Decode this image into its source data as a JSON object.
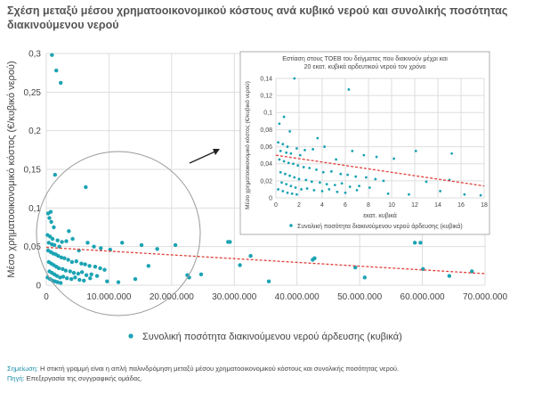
{
  "title": "Σχέση μεταξύ μέσου χρηματοοικονομικού κόστους ανά κυβικό νερού και συνολικής ποσότητας διακινούμενου νερού",
  "footnotes": {
    "note_label": "Σημείωση:",
    "note_text": " Η στικτή γραμμή είναι η απλή παλινδρόμηση μεταξύ μέσου χρηματοοικονομικού κόστους και συνολικής ποσότητας νερού.",
    "source_label": "Πηγή:",
    "source_text": " Επεξεργασία της συγγραφικής ομάδας."
  },
  "colors": {
    "point": "#1ba3b3",
    "regression": "#e0403a",
    "grid": "#dddddd",
    "circle": "#999999"
  },
  "chart_data": [
    {
      "type": "scatter",
      "title": "",
      "ylabel": "Μέσο χρηματοοικονομικό κόστος (€/κυβικό νερού)",
      "xlabel": "",
      "legend": "Συνολική ποσότητα διακινούμενου νερού άρδευσης (κυβικά)",
      "legend_position": "bottom",
      "xlim": [
        0,
        70000000
      ],
      "ylim": [
        0,
        0.3
      ],
      "x_ticks": [
        0,
        10000000,
        20000000,
        30000000,
        40000000,
        50000000,
        60000000,
        70000000
      ],
      "x_tick_labels": [
        "0",
        "10.000.000",
        "20.000.000",
        "30.000.000",
        "40.000.000",
        "50.000.000",
        "60.000.000",
        "70.000.000"
      ],
      "y_ticks": [
        0,
        0.05,
        0.1,
        0.15,
        0.2,
        0.25,
        0.3
      ],
      "y_tick_labels": [
        "0",
        "0,05",
        "0,1",
        "0,15",
        "0,2",
        "0,25",
        "0,3"
      ],
      "grid": true,
      "points": [
        [
          900000,
          0.298
        ],
        [
          1600000,
          0.278
        ],
        [
          2300000,
          0.262
        ],
        [
          1400000,
          0.143
        ],
        [
          6300000,
          0.127
        ],
        [
          700000,
          0.095
        ],
        [
          300000,
          0.093
        ],
        [
          500000,
          0.087
        ],
        [
          800000,
          0.082
        ],
        [
          1200000,
          0.075
        ],
        [
          3600000,
          0.07
        ],
        [
          200000,
          0.065
        ],
        [
          600000,
          0.063
        ],
        [
          1000000,
          0.06
        ],
        [
          1800000,
          0.058
        ],
        [
          2500000,
          0.056
        ],
        [
          400000,
          0.055
        ],
        [
          900000,
          0.053
        ],
        [
          1300000,
          0.052
        ],
        [
          2100000,
          0.05
        ],
        [
          3200000,
          0.057
        ],
        [
          4200000,
          0.06
        ],
        [
          5200000,
          0.045
        ],
        [
          6600000,
          0.055
        ],
        [
          7600000,
          0.05
        ],
        [
          8700000,
          0.048
        ],
        [
          10200000,
          0.046
        ],
        [
          12100000,
          0.055
        ],
        [
          15200000,
          0.052
        ],
        [
          16300000,
          0.025
        ],
        [
          300000,
          0.045
        ],
        [
          700000,
          0.043
        ],
        [
          1100000,
          0.041
        ],
        [
          1500000,
          0.04
        ],
        [
          1900000,
          0.038
        ],
        [
          2400000,
          0.036
        ],
        [
          2900000,
          0.035
        ],
        [
          3500000,
          0.033
        ],
        [
          4100000,
          0.03
        ],
        [
          4800000,
          0.031
        ],
        [
          5600000,
          0.028
        ],
        [
          6200000,
          0.027
        ],
        [
          6900000,
          0.025
        ],
        [
          7800000,
          0.024
        ],
        [
          8600000,
          0.022
        ],
        [
          9300000,
          0.02
        ],
        [
          400000,
          0.03
        ],
        [
          800000,
          0.028
        ],
        [
          1200000,
          0.026
        ],
        [
          1600000,
          0.024
        ],
        [
          2000000,
          0.022
        ],
        [
          2600000,
          0.021
        ],
        [
          3100000,
          0.019
        ],
        [
          3800000,
          0.018
        ],
        [
          4400000,
          0.016
        ],
        [
          5100000,
          0.015
        ],
        [
          5700000,
          0.017
        ],
        [
          6400000,
          0.013
        ],
        [
          7200000,
          0.014
        ],
        [
          8100000,
          0.012
        ],
        [
          500000,
          0.018
        ],
        [
          900000,
          0.016
        ],
        [
          1300000,
          0.014
        ],
        [
          1700000,
          0.012
        ],
        [
          2200000,
          0.01
        ],
        [
          2700000,
          0.011
        ],
        [
          3300000,
          0.009
        ],
        [
          4000000,
          0.008
        ],
        [
          4600000,
          0.01
        ],
        [
          5300000,
          0.007
        ],
        [
          6000000,
          0.006
        ],
        [
          7000000,
          0.009
        ],
        [
          200000,
          0.01
        ],
        [
          600000,
          0.008
        ],
        [
          1000000,
          0.006
        ],
        [
          1400000,
          0.005
        ],
        [
          1800000,
          0.004
        ],
        [
          2300000,
          0.003
        ],
        [
          9700000,
          0.005
        ],
        [
          11500000,
          0.004
        ],
        [
          14200000,
          0.008
        ],
        [
          17700000,
          0.047
        ],
        [
          20600000,
          0.052
        ],
        [
          22500000,
          0.013
        ],
        [
          22800000,
          0.01
        ],
        [
          24700000,
          0.014
        ],
        [
          29000000,
          0.056
        ],
        [
          29300000,
          0.056
        ],
        [
          30900000,
          0.026
        ],
        [
          32600000,
          0.038
        ],
        [
          35500000,
          0.005
        ],
        [
          42500000,
          0.033
        ],
        [
          42800000,
          0.035
        ],
        [
          49300000,
          0.023
        ],
        [
          50800000,
          0.01
        ],
        [
          58800000,
          0.055
        ],
        [
          59700000,
          0.055
        ],
        [
          60100000,
          0.021
        ],
        [
          64300000,
          0.012
        ],
        [
          67900000,
          0.018
        ]
      ],
      "regression": [
        [
          0,
          0.049
        ],
        [
          70000000,
          0.015
        ]
      ]
    },
    {
      "type": "scatter",
      "title": "Εστίαση στους ΤΟΕΒ του δείγματος που διακινούν μέχρι και 20 εκατ. κυβικά αρδευτικού νερού τον χρόνο",
      "ylabel": "Μέσο χρηματοοικονομικό κόστος (€/κυβικό νερού)",
      "xlabel": "εκατ. κυβικά",
      "legend": "Συνολική ποσότητα διακινούμενου νερού άρδευσης (κυβικά)",
      "legend_position": "bottom",
      "xlim": [
        0,
        18
      ],
      "ylim": [
        0,
        0.14
      ],
      "x_ticks": [
        0,
        2,
        4,
        6,
        8,
        10,
        12,
        14,
        16,
        18
      ],
      "x_tick_labels": [
        "0",
        "2",
        "4",
        "6",
        "8",
        "10",
        "12",
        "14",
        "16",
        "18"
      ],
      "y_ticks": [
        0,
        0.02,
        0.04,
        0.06,
        0.08,
        0.1,
        0.12,
        0.14
      ],
      "y_tick_labels": [
        "0",
        "0,02",
        "0,04",
        "0,06",
        "0,08",
        "0,1",
        "0,12",
        "0,14"
      ],
      "grid": true,
      "points": [
        [
          1.6,
          0.14
        ],
        [
          6.3,
          0.127
        ],
        [
          0.7,
          0.095
        ],
        [
          0.3,
          0.087
        ],
        [
          1.2,
          0.078
        ],
        [
          3.6,
          0.07
        ],
        [
          6.6,
          0.055
        ],
        [
          12.1,
          0.055
        ],
        [
          15.2,
          0.052
        ],
        [
          10.2,
          0.046
        ],
        [
          0.2,
          0.065
        ],
        [
          0.6,
          0.063
        ],
        [
          1.0,
          0.06
        ],
        [
          1.8,
          0.058
        ],
        [
          2.5,
          0.056
        ],
        [
          0.4,
          0.055
        ],
        [
          0.9,
          0.053
        ],
        [
          1.3,
          0.052
        ],
        [
          2.1,
          0.05
        ],
        [
          3.2,
          0.057
        ],
        [
          4.2,
          0.06
        ],
        [
          5.2,
          0.045
        ],
        [
          7.6,
          0.05
        ],
        [
          8.7,
          0.048
        ],
        [
          0.3,
          0.045
        ],
        [
          0.7,
          0.043
        ],
        [
          1.1,
          0.041
        ],
        [
          1.5,
          0.04
        ],
        [
          1.9,
          0.038
        ],
        [
          2.4,
          0.036
        ],
        [
          2.9,
          0.035
        ],
        [
          3.5,
          0.033
        ],
        [
          4.1,
          0.03
        ],
        [
          4.8,
          0.031
        ],
        [
          5.6,
          0.028
        ],
        [
          6.2,
          0.027
        ],
        [
          6.9,
          0.025
        ],
        [
          7.8,
          0.024
        ],
        [
          8.6,
          0.022
        ],
        [
          9.3,
          0.02
        ],
        [
          0.4,
          0.03
        ],
        [
          0.8,
          0.028
        ],
        [
          1.2,
          0.026
        ],
        [
          1.6,
          0.024
        ],
        [
          2.0,
          0.022
        ],
        [
          2.6,
          0.021
        ],
        [
          3.1,
          0.019
        ],
        [
          3.8,
          0.018
        ],
        [
          4.4,
          0.016
        ],
        [
          5.1,
          0.015
        ],
        [
          5.7,
          0.017
        ],
        [
          6.4,
          0.013
        ],
        [
          7.2,
          0.014
        ],
        [
          8.1,
          0.012
        ],
        [
          0.5,
          0.018
        ],
        [
          0.9,
          0.016
        ],
        [
          1.3,
          0.014
        ],
        [
          1.7,
          0.012
        ],
        [
          2.2,
          0.01
        ],
        [
          2.7,
          0.011
        ],
        [
          3.3,
          0.009
        ],
        [
          4.0,
          0.008
        ],
        [
          4.6,
          0.01
        ],
        [
          5.3,
          0.007
        ],
        [
          6.0,
          0.006
        ],
        [
          7.0,
          0.009
        ],
        [
          0.2,
          0.01
        ],
        [
          0.6,
          0.008
        ],
        [
          1.0,
          0.006
        ],
        [
          1.4,
          0.005
        ],
        [
          1.8,
          0.004
        ],
        [
          9.7,
          0.005
        ],
        [
          11.5,
          0.004
        ],
        [
          14.2,
          0.008
        ],
        [
          16.3,
          0.004
        ],
        [
          17.7,
          0.003
        ],
        [
          13.0,
          0.019
        ],
        [
          15.0,
          0.021
        ]
      ],
      "regression": [
        [
          0,
          0.05
        ],
        [
          18,
          0.014
        ]
      ]
    }
  ]
}
